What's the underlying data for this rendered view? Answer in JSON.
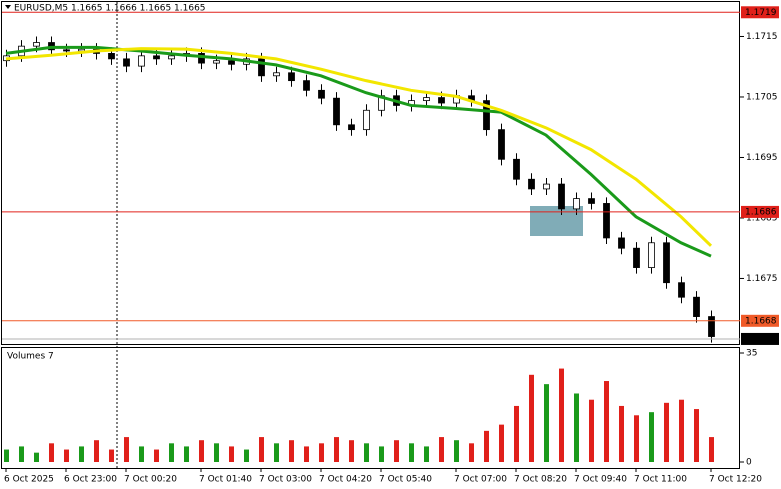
{
  "chart_data": {
    "type": "candlestick",
    "header": "EURUSD,M5  1.1665 1.1666 1.1665 1.1665",
    "categories": [
      "6 Oct 2025",
      null,
      null,
      null,
      "6 Oct 23:00",
      null,
      null,
      null,
      "7 Oct 00:20",
      null,
      null,
      null,
      null,
      "7 Oct 01:40",
      null,
      null,
      null,
      "7 Oct 03:00",
      null,
      null,
      null,
      "7 Oct 04:20",
      null,
      null,
      null,
      "7 Oct 05:40",
      null,
      null,
      null,
      null,
      "7 Oct 07:00",
      null,
      null,
      null,
      "7 Oct 08:20",
      null,
      null,
      null,
      "7 Oct 09:40",
      null,
      null,
      null,
      "7 Oct 11:00",
      null,
      null,
      null,
      null,
      "7 Oct 12:20"
    ],
    "open": [
      1.1711,
      1.17118,
      1.17134,
      1.1714,
      1.17128,
      1.17126,
      1.17129,
      1.17122,
      1.17113,
      1.17101,
      1.17118,
      1.17113,
      1.17118,
      1.17122,
      1.17106,
      1.1711,
      1.17104,
      1.17113,
      1.17085,
      1.1709,
      1.17077,
      1.17061,
      1.17048,
      1.17004,
      1.16996,
      1.17028,
      1.17052,
      1.17036,
      1.17044,
      1.17049,
      1.1704,
      1.17052,
      1.17044,
      1.16996,
      1.16947,
      1.16914,
      1.16898,
      1.16906,
      1.16865,
      1.16882,
      1.16874,
      1.16817,
      1.168,
      1.16768,
      1.16809,
      1.16743,
      1.16719,
      1.16687
    ],
    "high": [
      1.17128,
      1.17144,
      1.1715,
      1.1715,
      1.17138,
      1.17139,
      1.17139,
      1.17132,
      1.17123,
      1.17128,
      1.17128,
      1.17128,
      1.17132,
      1.17132,
      1.1712,
      1.1712,
      1.17123,
      1.17123,
      1.171,
      1.171,
      1.17087,
      1.17071,
      1.17058,
      1.17014,
      1.17038,
      1.17062,
      1.17062,
      1.17054,
      1.17059,
      1.17059,
      1.17062,
      1.17062,
      1.17054,
      1.17006,
      1.16957,
      1.16924,
      1.16916,
      1.16916,
      1.16892,
      1.16892,
      1.16884,
      1.16827,
      1.1681,
      1.16819,
      1.16819,
      1.16753,
      1.16729,
      1.16697
    ],
    "low": [
      1.171,
      1.17108,
      1.17124,
      1.17118,
      1.17116,
      1.17116,
      1.17112,
      1.17103,
      1.17091,
      1.17091,
      1.17103,
      1.17103,
      1.17108,
      1.17096,
      1.17096,
      1.17094,
      1.17094,
      1.17075,
      1.17075,
      1.17067,
      1.17051,
      1.17038,
      1.16994,
      1.16986,
      1.16986,
      1.17018,
      1.17026,
      1.17026,
      1.17034,
      1.1703,
      1.1703,
      1.17034,
      1.16986,
      1.16937,
      1.16904,
      1.16888,
      1.16888,
      1.16855,
      1.16855,
      1.16864,
      1.16807,
      1.1679,
      1.16758,
      1.16758,
      1.16733,
      1.16709,
      1.16677,
      1.16644
    ],
    "close": [
      1.17118,
      1.17134,
      1.1714,
      1.17128,
      1.17126,
      1.17129,
      1.17122,
      1.17113,
      1.17101,
      1.17118,
      1.17113,
      1.17118,
      1.17122,
      1.17106,
      1.1711,
      1.17104,
      1.17113,
      1.17085,
      1.1709,
      1.17077,
      1.17061,
      1.17048,
      1.17004,
      1.16996,
      1.17028,
      1.17052,
      1.17036,
      1.17044,
      1.17049,
      1.1704,
      1.17052,
      1.17044,
      1.16996,
      1.16947,
      1.16914,
      1.16898,
      1.16906,
      1.16865,
      1.16882,
      1.16874,
      1.16817,
      1.168,
      1.16768,
      1.16809,
      1.16743,
      1.16719,
      1.16687,
      1.16654
    ],
    "ylim": [
      1.1664,
      1.17207
    ],
    "yticks": [
      1.1715,
      1.1705,
      1.1695,
      1.1685,
      1.1675
    ],
    "bull_color": "#ffffff",
    "bear_color": "#000000",
    "moving_averages": [
      {
        "color": "#1a9a1a",
        "x": [
          0,
          3,
          6,
          9,
          12,
          15,
          18,
          21,
          24,
          27,
          30,
          33,
          36,
          39,
          42,
          45,
          47
        ],
        "values": [
          1.17122,
          1.17132,
          1.17132,
          1.17126,
          1.17119,
          1.17113,
          1.17103,
          1.17085,
          1.17057,
          1.17036,
          1.17031,
          1.17025,
          1.16987,
          1.16922,
          1.16852,
          1.16809,
          1.16787
        ]
      },
      {
        "color": "#f2e600",
        "x": [
          0,
          3,
          6,
          9,
          12,
          15,
          18,
          21,
          24,
          27,
          30,
          33,
          36,
          39,
          42,
          45,
          47
        ],
        "values": [
          1.17113,
          1.17119,
          1.17126,
          1.1713,
          1.17129,
          1.17122,
          1.17113,
          1.17096,
          1.17077,
          1.17061,
          1.17051,
          1.17028,
          1.16999,
          1.16963,
          1.16914,
          1.16852,
          1.16804
        ]
      }
    ],
    "levels": [
      {
        "value": 1.1719,
        "label": "1.1719",
        "color": "#e0201a"
      },
      {
        "value": 1.1686,
        "label": "1.1686",
        "color": "#e0201a"
      },
      {
        "value": 1.1668,
        "label": "1.1668",
        "color": "#f05a28"
      },
      {
        "value": 1.1665,
        "label": "1.1665",
        "color": "#000000"
      }
    ],
    "volume": {
      "title": "Volumes 7",
      "values": [
        4,
        5,
        3,
        6,
        4,
        5,
        7,
        4,
        8,
        5,
        4,
        6,
        5,
        7,
        6,
        5,
        4,
        8,
        6,
        7,
        5,
        6,
        8,
        7,
        6,
        5,
        7,
        6,
        5,
        8,
        7,
        6,
        10,
        12,
        18,
        28,
        25,
        30,
        22,
        20,
        26,
        18,
        15,
        16,
        19,
        20,
        17,
        8
      ],
      "ylim": [
        0,
        35
      ],
      "yticks": [
        0,
        35
      ],
      "up_color": "#1a9a1a",
      "down_color": "#e0201a"
    }
  }
}
